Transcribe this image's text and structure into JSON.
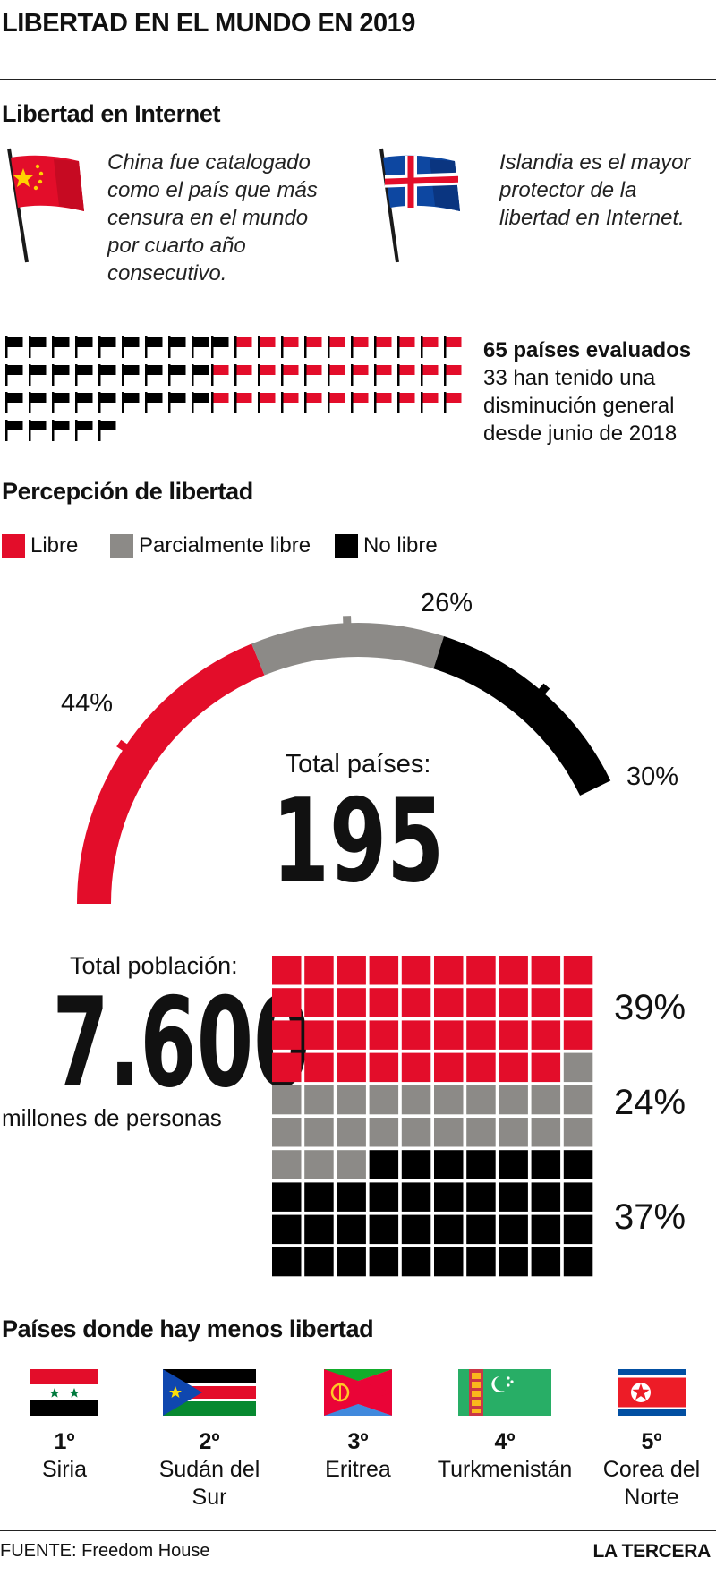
{
  "title": "LIBERTAD EN EL MUNDO EN 2019",
  "internet": {
    "heading": "Libertad en Internet",
    "china_note_lines": [
      "China fue catalogado",
      "como el país que más",
      "censura en el mundo",
      "por cuarto año",
      "consecutivo."
    ],
    "iceland_note_lines": [
      "Islandia es el mayor",
      "protector de la",
      "libertad en Internet."
    ],
    "summary_bold": "65 países evaluados",
    "summary_lines": [
      "33 han tenido una",
      "disminución general",
      "desde junio de 2018"
    ]
  },
  "perception": {
    "heading": "Percepción de libertad",
    "legend": [
      "Libre",
      "Parcialmente libre",
      "No libre"
    ],
    "total_label": "Total países:",
    "total_value": "195",
    "labels": [
      "44%",
      "26%",
      "30%"
    ]
  },
  "population": {
    "label_top": "Total población:",
    "value": "7.600",
    "label_bottom": "millones de personas",
    "labels": [
      "39%",
      "24%",
      "37%"
    ]
  },
  "ranking": {
    "heading": "Países donde hay menos libertad",
    "items": [
      {
        "rank": "1º",
        "line1": "Siria",
        "line2": "",
        "flag": "syria-flag-icon"
      },
      {
        "rank": "2º",
        "line1": "Sudán del",
        "line2": "Sur",
        "flag": "south-sudan-flag-icon"
      },
      {
        "rank": "3º",
        "line1": "Eritrea",
        "line2": "",
        "flag": "eritrea-flag-icon"
      },
      {
        "rank": "4º",
        "line1": "Turkmenistán",
        "line2": "",
        "flag": "turkmenistan-flag-icon"
      },
      {
        "rank": "5º",
        "line1": "Corea del",
        "line2": "Norte",
        "flag": "north-korea-flag-icon"
      }
    ]
  },
  "footer": {
    "source": "FUENTE: Freedom House",
    "brand": "LA TERCERA"
  },
  "colors": {
    "free": "#e30d2a",
    "partly": "#8c8a87",
    "not_free": "#000000"
  },
  "chart_data": [
    {
      "type": "pictogram",
      "total": 65,
      "categories": [
        "No libre",
        "Libre"
      ],
      "values": [
        33,
        32
      ]
    },
    {
      "type": "gauge",
      "categories": [
        "Libre",
        "Parcialmente libre",
        "No libre"
      ],
      "values": [
        44,
        26,
        30
      ],
      "total": 195
    },
    {
      "type": "waffle",
      "categories": [
        "Libre",
        "Parcialmente libre",
        "No libre"
      ],
      "values": [
        39,
        24,
        37
      ],
      "total": 7600
    }
  ]
}
